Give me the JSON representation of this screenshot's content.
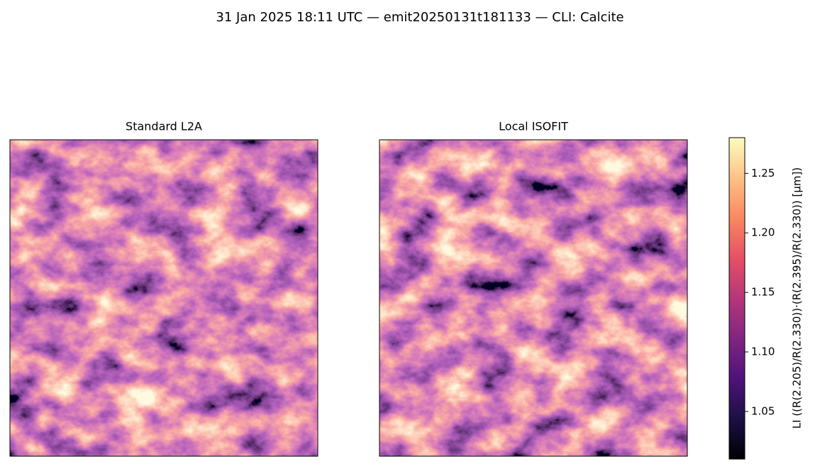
{
  "chart_data": {
    "type": "image",
    "title": "31 Jan 2025 18:11 UTC — emit20250131t181133 — CLI: Calcite",
    "panels": [
      {
        "title": "Standard L2A"
      },
      {
        "title": "Local ISOFIT"
      }
    ],
    "colorbar": {
      "label": "LI  ((R(2.205)/R(2.330))·(R(2.395)/R(2.330))  [µm])",
      "colormap": "magma",
      "lim": [
        1.01,
        1.28
      ],
      "ticks": [
        1.05,
        {
          "value": 1.1,
          "label": "1.10"
        },
        1.15,
        {
          "value": 1.2,
          "label": "1.20"
        },
        1.25
      ]
    }
  }
}
